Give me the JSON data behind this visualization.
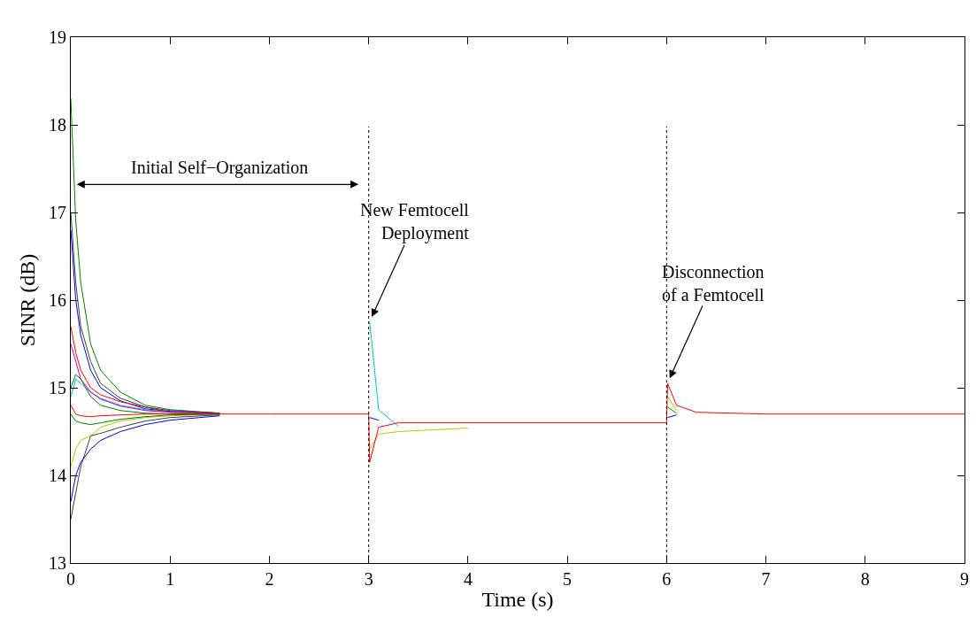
{
  "chart_data": {
    "type": "line",
    "xlabel": "Time (s)",
    "ylabel": "SINR (dB)",
    "x": [
      0,
      0.05,
      0.1,
      0.2,
      0.3,
      0.5,
      0.75,
      1,
      1.5,
      2,
      3,
      3.01,
      3.1,
      3.3,
      4,
      5,
      6,
      6.01,
      6.1,
      6.3,
      7,
      9
    ],
    "series": [
      {
        "color": "#008000",
        "values": [
          18.3,
          16.9,
          16.2,
          15.5,
          15.2,
          14.95,
          14.8,
          14.75,
          14.71,
          null,
          null,
          null,
          null,
          null,
          null,
          null,
          null,
          14.78,
          14.71,
          null,
          null,
          null
        ]
      },
      {
        "color": "#0000ff",
        "values": [
          16.8,
          16.0,
          15.6,
          15.2,
          15.0,
          14.85,
          14.76,
          14.73,
          14.71,
          null,
          null,
          14.66,
          14.63,
          null,
          null,
          null,
          null,
          14.66,
          14.69,
          null,
          null,
          null
        ]
      },
      {
        "color": "#ff0000",
        "values": [
          15.7,
          15.4,
          15.2,
          15.0,
          14.92,
          14.84,
          14.78,
          14.72,
          14.71,
          null,
          null,
          null,
          null,
          null,
          null,
          null,
          null,
          null,
          null,
          null,
          null,
          null
        ]
      },
      {
        "color": "#00bfbf",
        "values": [
          14.9,
          15.1,
          15.05,
          14.95,
          14.88,
          14.8,
          14.75,
          14.72,
          14.71,
          null,
          null,
          15.75,
          14.75,
          14.56,
          null,
          null,
          null,
          null,
          null,
          null,
          null,
          null
        ]
      },
      {
        "color": "#bf00bf",
        "values": [
          15.5,
          15.3,
          15.1,
          14.95,
          14.87,
          14.79,
          14.74,
          14.72,
          14.71,
          null,
          null,
          null,
          null,
          null,
          null,
          null,
          null,
          null,
          null,
          null,
          null,
          null
        ]
      },
      {
        "color": "#bfbf00",
        "values": [
          14.1,
          14.3,
          14.4,
          14.45,
          14.55,
          14.62,
          14.66,
          14.68,
          14.7,
          null,
          null,
          14.3,
          14.47,
          14.5,
          14.54,
          null,
          null,
          14.9,
          14.74,
          null,
          null,
          null
        ]
      },
      {
        "color": "#404040",
        "values": [
          13.5,
          13.8,
          14.1,
          14.45,
          14.48,
          14.55,
          14.62,
          14.66,
          14.69,
          null,
          null,
          null,
          null,
          null,
          null,
          null,
          null,
          null,
          null,
          null,
          null,
          null
        ]
      },
      {
        "color": "#0000ff",
        "values": [
          13.7,
          14.0,
          14.15,
          14.3,
          14.4,
          14.5,
          14.58,
          14.63,
          14.68,
          null,
          null,
          null,
          null,
          null,
          null,
          null,
          null,
          null,
          null,
          null,
          null,
          null
        ]
      },
      {
        "color": "#008000",
        "values": [
          15.0,
          15.15,
          15.1,
          14.9,
          14.8,
          14.74,
          14.71,
          14.7,
          14.7,
          null,
          null,
          null,
          null,
          null,
          null,
          null,
          null,
          null,
          null,
          null,
          null,
          null
        ]
      },
      {
        "color": "#008000",
        "values": [
          14.7,
          14.62,
          14.6,
          14.58,
          14.6,
          14.64,
          14.67,
          14.69,
          14.7,
          null,
          null,
          null,
          null,
          null,
          null,
          null,
          null,
          null,
          null,
          null,
          null,
          null
        ]
      },
      {
        "color": "#404040",
        "values": [
          17.0,
          16.2,
          15.7,
          15.3,
          15.05,
          14.88,
          14.78,
          14.74,
          14.71,
          null,
          null,
          null,
          null,
          null,
          null,
          null,
          null,
          null,
          null,
          null,
          null,
          null
        ]
      },
      {
        "color": "#ff0000",
        "values": [
          14.8,
          14.7,
          14.68,
          14.67,
          14.68,
          14.69,
          14.7,
          14.7,
          14.7,
          14.7,
          14.7,
          14.15,
          14.55,
          14.6,
          14.6,
          14.6,
          14.6,
          15.05,
          14.8,
          14.72,
          14.7,
          14.7
        ]
      }
    ],
    "xlim": [
      0,
      9
    ],
    "xticks": [
      0,
      1,
      2,
      3,
      4,
      5,
      6,
      7,
      8,
      9
    ],
    "ylim": [
      13,
      19
    ],
    "yticks": [
      13,
      14,
      15,
      16,
      17,
      18,
      19
    ],
    "grid": false,
    "marker": "none",
    "line_style": "solid",
    "ref_lines": [
      {
        "axis": "x",
        "value": 3,
        "color": "#000000",
        "line_style": "dotted"
      },
      {
        "axis": "x",
        "value": 6,
        "color": "#000000",
        "line_style": "dotted"
      }
    ],
    "annotations": [
      "Initial Self−Organization",
      {
        "text": "New Femtocell\nDeployment",
        "x": 3.02,
        "y": 15.78
      },
      {
        "text": "Disconnection\nof a Femtocell",
        "x": 6.02,
        "y": 15.08
      }
    ]
  }
}
